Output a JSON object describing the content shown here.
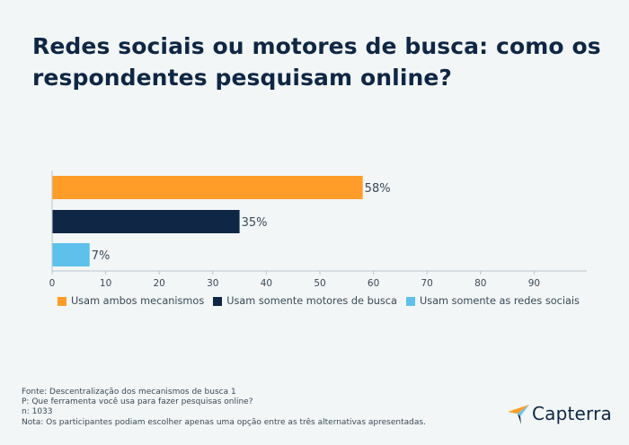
{
  "title": "Redes sociais ou motores de busca: como os respondentes pesquisam online?",
  "chart_data": {
    "type": "bar",
    "orientation": "horizontal",
    "categories": [
      "Usam ambos mecanismos",
      "Usam somente motores de busca",
      "Usam somente as redes sociais"
    ],
    "values": [
      58,
      35,
      7
    ],
    "value_labels": [
      "58%",
      "35%",
      "7%"
    ],
    "colors": [
      "#ff9d28",
      "#0f2744",
      "#5ec1ec"
    ],
    "xticks": [
      0,
      10,
      20,
      30,
      40,
      50,
      60,
      70,
      80,
      90
    ],
    "xlim": [
      0,
      100
    ],
    "grid": false,
    "legend_position": "bottom-left"
  },
  "legend": [
    {
      "label": "Usam ambos mecanismos",
      "color": "#ff9d28"
    },
    {
      "label": "Usam somente motores de busca",
      "color": "#0f2744"
    },
    {
      "label": "Usam somente as redes sociais",
      "color": "#5ec1ec"
    }
  ],
  "footer": {
    "source": "Fonte: Descentralização dos mecanismos de busca 1",
    "question": "P: Que ferramenta você usa para fazer pesquisas online?",
    "n": "n: 1033",
    "note": "Nota: Os participantes podiam escolher apenas uma opção entre as três alternativas apresentadas."
  },
  "brand": {
    "name": "Capterra",
    "colors": [
      "#ff9d28",
      "#68c5ed",
      "#0f2744",
      "#a3a3a3"
    ]
  }
}
